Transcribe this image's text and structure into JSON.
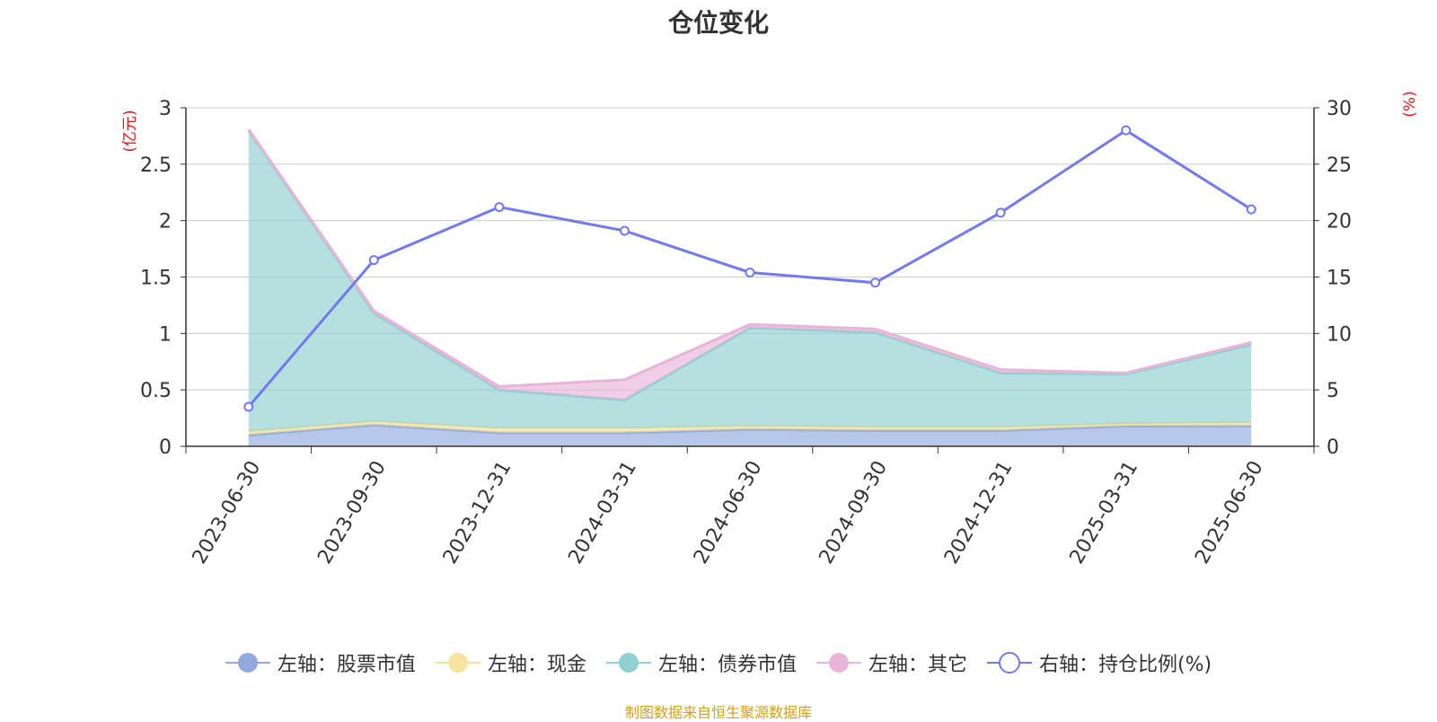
{
  "chart_data": {
    "type": "area",
    "title": "仓位变化",
    "categories": [
      "2023-06-30",
      "2023-09-30",
      "2023-12-31",
      "2024-03-31",
      "2024-06-30",
      "2024-09-30",
      "2024-12-31",
      "2025-03-31",
      "2025-06-30"
    ],
    "left_axis": {
      "unit_label": "(亿元)",
      "ylim": [
        0,
        3
      ],
      "ticks": [
        "0",
        "0.5",
        "1",
        "1.5",
        "2",
        "2.5",
        "3"
      ]
    },
    "right_axis": {
      "unit_label": "(%)",
      "ylim": [
        0,
        30
      ],
      "ticks": [
        "0",
        "5",
        "10",
        "15",
        "20",
        "25",
        "30"
      ]
    },
    "stacked_series": [
      {
        "name": "左轴：股票市值",
        "color": "#91a9dc",
        "values": [
          0.1,
          0.19,
          0.12,
          0.12,
          0.15,
          0.14,
          0.14,
          0.18,
          0.18
        ]
      },
      {
        "name": "左轴：现金",
        "color": "#f5e3a0",
        "values": [
          0.03,
          0.03,
          0.04,
          0.04,
          0.03,
          0.03,
          0.03,
          0.02,
          0.03
        ]
      },
      {
        "name": "左轴：债券市值",
        "color": "#8fd0d0",
        "values": [
          2.67,
          0.96,
          0.34,
          0.25,
          0.87,
          0.84,
          0.48,
          0.44,
          0.69
        ]
      },
      {
        "name": "左轴：其它",
        "color": "#e8b4d8",
        "values": [
          0.01,
          0.02,
          0.03,
          0.18,
          0.03,
          0.03,
          0.03,
          0.01,
          0.02
        ]
      }
    ],
    "line_series": {
      "name": "右轴：持仓比例(%)",
      "color": "#7379ee",
      "values": [
        3.5,
        16.5,
        21.2,
        19.1,
        15.4,
        14.5,
        20.7,
        28.0,
        21.0
      ]
    },
    "grid": true,
    "legend_position": "bottom"
  },
  "source_text": "制图数据来自恒生聚源数据库",
  "colors": {
    "axis_unit_label": "#ee1111",
    "source_text": "#d4a017",
    "grid": "#cccccc",
    "axis": "#333333"
  }
}
